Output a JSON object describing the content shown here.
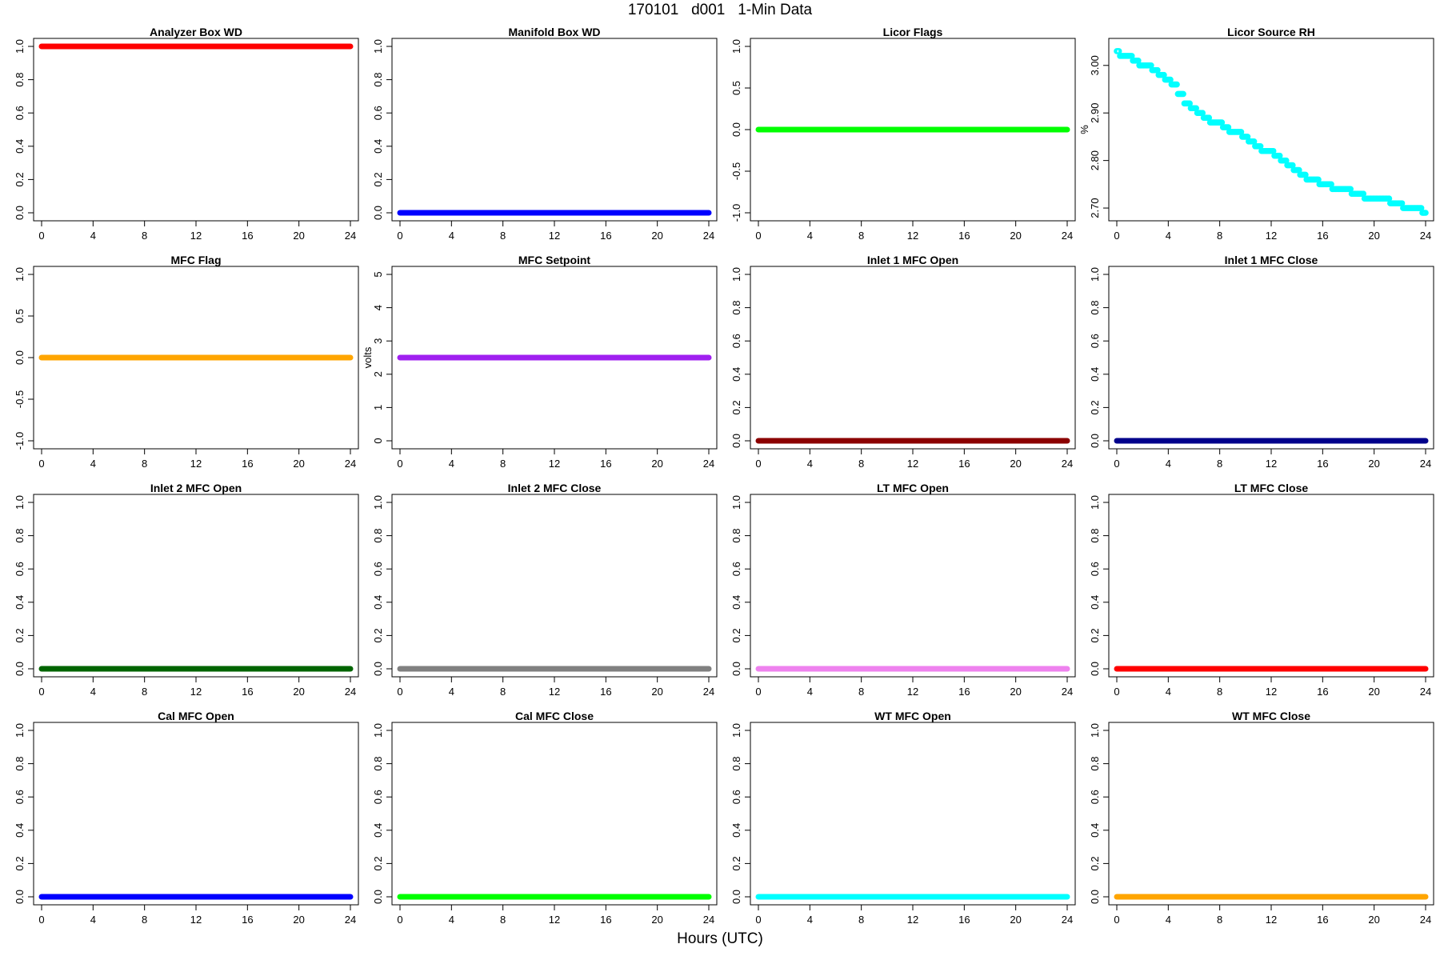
{
  "page": {
    "title": "170101   d001   1-Min Data",
    "xlabel": "Hours (UTC)"
  },
  "chart_data": [
    {
      "type": "scatter",
      "title": "Analyzer Box WD",
      "ylabel": "",
      "color": "#ff0000",
      "ylim": [
        0,
        1
      ],
      "yticks": [
        0,
        0.2,
        0.4,
        0.6,
        0.8,
        1
      ],
      "ytick_labels": [
        "0.0",
        "0.2",
        "0.4",
        "0.6",
        "0.8",
        "1.0"
      ],
      "xlim": [
        0,
        24
      ],
      "xticks": [
        0,
        4,
        8,
        12,
        16,
        20,
        24
      ],
      "series": [
        {
          "x": [
            0,
            24
          ],
          "y": [
            1,
            1
          ]
        }
      ]
    },
    {
      "type": "scatter",
      "title": "Manifold Box WD",
      "ylabel": "",
      "color": "#0000ff",
      "ylim": [
        0,
        1
      ],
      "yticks": [
        0,
        0.2,
        0.4,
        0.6,
        0.8,
        1
      ],
      "ytick_labels": [
        "0.0",
        "0.2",
        "0.4",
        "0.6",
        "0.8",
        "1.0"
      ],
      "xlim": [
        0,
        24
      ],
      "xticks": [
        0,
        4,
        8,
        12,
        16,
        20,
        24
      ],
      "series": [
        {
          "x": [
            0,
            24
          ],
          "y": [
            0,
            0
          ]
        }
      ]
    },
    {
      "type": "scatter",
      "title": "Licor Flags",
      "ylabel": "",
      "color": "#00ff00",
      "ylim": [
        -1,
        1
      ],
      "yticks": [
        -1,
        -0.5,
        0,
        0.5,
        1
      ],
      "ytick_labels": [
        "-1.0",
        "-0.5",
        "0.0",
        "0.5",
        "1.0"
      ],
      "xlim": [
        0,
        24
      ],
      "xticks": [
        0,
        4,
        8,
        12,
        16,
        20,
        24
      ],
      "series": [
        {
          "x": [
            0,
            24
          ],
          "y": [
            0,
            0
          ]
        }
      ]
    },
    {
      "type": "scatter",
      "title": "Licor Source RH",
      "ylabel": "%",
      "color": "#00ffff",
      "ylim": [
        2.69,
        3.04
      ],
      "yticks": [
        2.7,
        2.8,
        2.9,
        3.0
      ],
      "ytick_labels": [
        "2.70",
        "2.80",
        "2.90",
        "3.00"
      ],
      "xlim": [
        0,
        24
      ],
      "xticks": [
        0,
        4,
        8,
        12,
        16,
        20,
        24
      ],
      "series": [
        {
          "x": [
            0,
            0.5,
            1,
            1.5,
            2,
            2.5,
            3,
            3.5,
            4,
            4.5,
            5,
            5.5,
            6,
            6.5,
            7,
            7.5,
            8,
            8.5,
            9,
            9.5,
            10,
            10.5,
            11,
            11.5,
            12,
            12.5,
            13,
            13.5,
            14,
            14.5,
            15,
            15.5,
            16,
            16.5,
            17,
            17.5,
            18,
            18.5,
            19,
            19.5,
            20,
            20.5,
            21,
            21.5,
            22,
            22.5,
            23,
            23.5,
            24
          ],
          "y": [
            3.03,
            3.02,
            3.02,
            3.01,
            3.0,
            3.0,
            2.99,
            2.98,
            2.97,
            2.96,
            2.94,
            2.92,
            2.91,
            2.9,
            2.89,
            2.88,
            2.88,
            2.87,
            2.86,
            2.86,
            2.85,
            2.84,
            2.83,
            2.82,
            2.82,
            2.81,
            2.8,
            2.79,
            2.78,
            2.77,
            2.76,
            2.76,
            2.75,
            2.75,
            2.74,
            2.74,
            2.74,
            2.73,
            2.73,
            2.72,
            2.72,
            2.72,
            2.72,
            2.71,
            2.71,
            2.7,
            2.7,
            2.7,
            2.69
          ]
        }
      ]
    },
    {
      "type": "scatter",
      "title": "MFC Flag",
      "ylabel": "",
      "color": "#ffa500",
      "ylim": [
        -1,
        1
      ],
      "yticks": [
        -1,
        -0.5,
        0,
        0.5,
        1
      ],
      "ytick_labels": [
        "-1.0",
        "-0.5",
        "0.0",
        "0.5",
        "1.0"
      ],
      "xlim": [
        0,
        24
      ],
      "xticks": [
        0,
        4,
        8,
        12,
        16,
        20,
        24
      ],
      "series": [
        {
          "x": [
            0,
            24
          ],
          "y": [
            0,
            0
          ]
        }
      ]
    },
    {
      "type": "scatter",
      "title": "MFC Setpoint",
      "ylabel": "volts",
      "color": "#a020f0",
      "ylim": [
        0,
        5
      ],
      "yticks": [
        0,
        1,
        2,
        3,
        4,
        5
      ],
      "ytick_labels": [
        "0",
        "1",
        "2",
        "3",
        "4",
        "5"
      ],
      "xlim": [
        0,
        24
      ],
      "xticks": [
        0,
        4,
        8,
        12,
        16,
        20,
        24
      ],
      "series": [
        {
          "x": [
            0,
            24
          ],
          "y": [
            2.5,
            2.5
          ]
        }
      ]
    },
    {
      "type": "scatter",
      "title": "Inlet 1 MFC Open",
      "ylabel": "",
      "color": "#8b0000",
      "ylim": [
        0,
        1
      ],
      "yticks": [
        0,
        0.2,
        0.4,
        0.6,
        0.8,
        1
      ],
      "ytick_labels": [
        "0.0",
        "0.2",
        "0.4",
        "0.6",
        "0.8",
        "1.0"
      ],
      "xlim": [
        0,
        24
      ],
      "xticks": [
        0,
        4,
        8,
        12,
        16,
        20,
        24
      ],
      "series": [
        {
          "x": [
            0,
            24
          ],
          "y": [
            0,
            0
          ]
        }
      ]
    },
    {
      "type": "scatter",
      "title": "Inlet 1 MFC Close",
      "ylabel": "",
      "color": "#00008b",
      "ylim": [
        0,
        1
      ],
      "yticks": [
        0,
        0.2,
        0.4,
        0.6,
        0.8,
        1
      ],
      "ytick_labels": [
        "0.0",
        "0.2",
        "0.4",
        "0.6",
        "0.8",
        "1.0"
      ],
      "xlim": [
        0,
        24
      ],
      "xticks": [
        0,
        4,
        8,
        12,
        16,
        20,
        24
      ],
      "series": [
        {
          "x": [
            0,
            24
          ],
          "y": [
            0,
            0
          ]
        }
      ]
    },
    {
      "type": "scatter",
      "title": "Inlet 2 MFC Open",
      "ylabel": "",
      "color": "#006400",
      "ylim": [
        0,
        1
      ],
      "yticks": [
        0,
        0.2,
        0.4,
        0.6,
        0.8,
        1
      ],
      "ytick_labels": [
        "0.0",
        "0.2",
        "0.4",
        "0.6",
        "0.8",
        "1.0"
      ],
      "xlim": [
        0,
        24
      ],
      "xticks": [
        0,
        4,
        8,
        12,
        16,
        20,
        24
      ],
      "series": [
        {
          "x": [
            0,
            24
          ],
          "y": [
            0,
            0
          ]
        }
      ]
    },
    {
      "type": "scatter",
      "title": "Inlet 2 MFC Close",
      "ylabel": "",
      "color": "#808080",
      "ylim": [
        0,
        1
      ],
      "yticks": [
        0,
        0.2,
        0.4,
        0.6,
        0.8,
        1
      ],
      "ytick_labels": [
        "0.0",
        "0.2",
        "0.4",
        "0.6",
        "0.8",
        "1.0"
      ],
      "xlim": [
        0,
        24
      ],
      "xticks": [
        0,
        4,
        8,
        12,
        16,
        20,
        24
      ],
      "series": [
        {
          "x": [
            0,
            24
          ],
          "y": [
            0,
            0
          ]
        }
      ]
    },
    {
      "type": "scatter",
      "title": "LT MFC Open",
      "ylabel": "",
      "color": "#ee82ee",
      "ylim": [
        0,
        1
      ],
      "yticks": [
        0,
        0.2,
        0.4,
        0.6,
        0.8,
        1
      ],
      "ytick_labels": [
        "0.0",
        "0.2",
        "0.4",
        "0.6",
        "0.8",
        "1.0"
      ],
      "xlim": [
        0,
        24
      ],
      "xticks": [
        0,
        4,
        8,
        12,
        16,
        20,
        24
      ],
      "series": [
        {
          "x": [
            0,
            24
          ],
          "y": [
            0,
            0
          ]
        }
      ]
    },
    {
      "type": "scatter",
      "title": "LT MFC Close",
      "ylabel": "",
      "color": "#ff0000",
      "ylim": [
        0,
        1
      ],
      "yticks": [
        0,
        0.2,
        0.4,
        0.6,
        0.8,
        1
      ],
      "ytick_labels": [
        "0.0",
        "0.2",
        "0.4",
        "0.6",
        "0.8",
        "1.0"
      ],
      "xlim": [
        0,
        24
      ],
      "xticks": [
        0,
        4,
        8,
        12,
        16,
        20,
        24
      ],
      "series": [
        {
          "x": [
            0,
            24
          ],
          "y": [
            0,
            0
          ]
        }
      ]
    },
    {
      "type": "scatter",
      "title": "Cal MFC Open",
      "ylabel": "",
      "color": "#0000ff",
      "ylim": [
        0,
        1
      ],
      "yticks": [
        0,
        0.2,
        0.4,
        0.6,
        0.8,
        1
      ],
      "ytick_labels": [
        "0.0",
        "0.2",
        "0.4",
        "0.6",
        "0.8",
        "1.0"
      ],
      "xlim": [
        0,
        24
      ],
      "xticks": [
        0,
        4,
        8,
        12,
        16,
        20,
        24
      ],
      "series": [
        {
          "x": [
            0,
            24
          ],
          "y": [
            0,
            0
          ]
        }
      ]
    },
    {
      "type": "scatter",
      "title": "Cal MFC Close",
      "ylabel": "",
      "color": "#00ff00",
      "ylim": [
        0,
        1
      ],
      "yticks": [
        0,
        0.2,
        0.4,
        0.6,
        0.8,
        1
      ],
      "ytick_labels": [
        "0.0",
        "0.2",
        "0.4",
        "0.6",
        "0.8",
        "1.0"
      ],
      "xlim": [
        0,
        24
      ],
      "xticks": [
        0,
        4,
        8,
        12,
        16,
        20,
        24
      ],
      "series": [
        {
          "x": [
            0,
            24
          ],
          "y": [
            0,
            0
          ]
        }
      ]
    },
    {
      "type": "scatter",
      "title": "WT MFC Open",
      "ylabel": "",
      "color": "#00ffff",
      "ylim": [
        0,
        1
      ],
      "yticks": [
        0,
        0.2,
        0.4,
        0.6,
        0.8,
        1
      ],
      "ytick_labels": [
        "0.0",
        "0.2",
        "0.4",
        "0.6",
        "0.8",
        "1.0"
      ],
      "xlim": [
        0,
        24
      ],
      "xticks": [
        0,
        4,
        8,
        12,
        16,
        20,
        24
      ],
      "series": [
        {
          "x": [
            0,
            24
          ],
          "y": [
            0,
            0
          ]
        }
      ]
    },
    {
      "type": "scatter",
      "title": "WT MFC Close",
      "ylabel": "",
      "color": "#ffa500",
      "ylim": [
        0,
        1
      ],
      "yticks": [
        0,
        0.2,
        0.4,
        0.6,
        0.8,
        1
      ],
      "ytick_labels": [
        "0.0",
        "0.2",
        "0.4",
        "0.6",
        "0.8",
        "1.0"
      ],
      "xlim": [
        0,
        24
      ],
      "xticks": [
        0,
        4,
        8,
        12,
        16,
        20,
        24
      ],
      "series": [
        {
          "x": [
            0,
            24
          ],
          "y": [
            0,
            0
          ]
        }
      ]
    }
  ]
}
